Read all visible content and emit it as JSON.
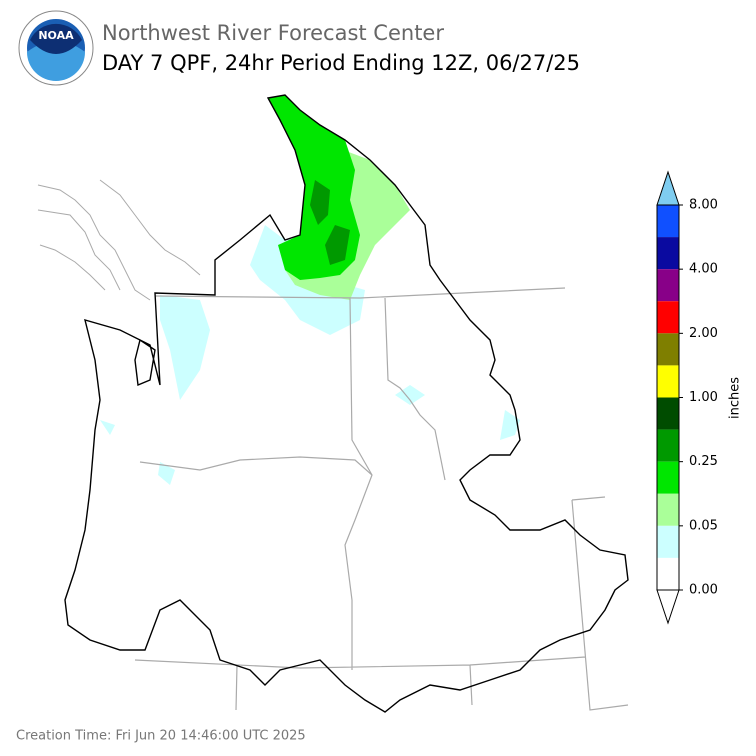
{
  "header": {
    "logo": "NOAA",
    "title": "Northwest River Forecast Center",
    "subtitle": "DAY 7 QPF, 24hr Period Ending 12Z, 06/27/25"
  },
  "colorbar": {
    "label": "inches",
    "ticks": [
      "8.00",
      "4.00",
      "2.00",
      "1.00",
      "0.25",
      "0.05",
      "0.00"
    ],
    "over_color": "#7fcdf0",
    "colors": [
      "#1050ff",
      "#0a0aa0",
      "#880088",
      "#ff0000",
      "#7f7f00",
      "#ffff00",
      "#004c00",
      "#009900",
      "#00e600",
      "#aaff99",
      "#ccffff",
      "#ffffff"
    ],
    "under_color": "#ffffff"
  },
  "footer": {
    "creation_time": "Creation Time: Fri Jun 20 14:46:00 UTC 2025"
  }
}
